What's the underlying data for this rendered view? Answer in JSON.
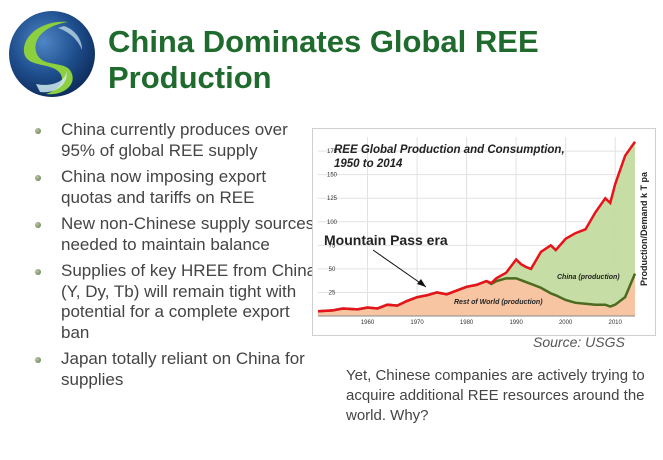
{
  "title": "China Dominates Global REE Production",
  "bullets": [
    "China currently produces over 95% of global REE supply",
    "China now imposing export quotas and tariffs on REE",
    "New non-Chinese supply sources needed to maintain balance",
    "Supplies of key HREE from China (Y, Dy, Tb) will remain tight with potential for a complete export ban",
    "Japan totally reliant on China for supplies"
  ],
  "chart": {
    "title": "REE Global Production and Consumption, 1950 to 2014",
    "ylabel": "Production/Demand k T pa",
    "mountain_pass_label": "Mountain Pass era",
    "china_label": "China (production)",
    "row_label": "Rest of World (production)"
  },
  "source": "Source: USGS",
  "note": "Yet, Chinese companies are actively trying to acquire additional REE resources around the world. Why?",
  "colors": {
    "title": "#1f6b2d",
    "total_line": "#e8121b",
    "row_line": "#4c6b1f",
    "china_fill": "#c3dba0",
    "row_fill": "#f8c5a3"
  },
  "chart_data": {
    "type": "area",
    "title": "REE Global Production and Consumption, 1950 to 2014",
    "xlabel": "",
    "ylabel": "Production/Demand k T pa",
    "xlim": [
      1950,
      2014
    ],
    "ylim": [
      0,
      190
    ],
    "xticks": [
      1960,
      1970,
      1980,
      1990,
      2000,
      2010
    ],
    "yticks": [
      25,
      50,
      75,
      100,
      125,
      150,
      175
    ],
    "grid": true,
    "series": [
      {
        "name": "",
        "x": [
          1950,
          1953,
          1955,
          1958,
          1960,
          1962,
          1964,
          1966,
          1968,
          1970,
          1972,
          1974,
          1976,
          1978,
          1980,
          1982,
          1984,
          1985,
          1986,
          1988,
          1990,
          1991,
          1992,
          1993,
          1995,
          1997,
          1998,
          2000,
          2002,
          2004,
          2006,
          2008,
          2009,
          2010,
          2012,
          2014
        ],
        "values": [
          5,
          6,
          8,
          7,
          9,
          8,
          12,
          11,
          16,
          20,
          22,
          25,
          23,
          27,
          31,
          33,
          37,
          35,
          40,
          46,
          60,
          55,
          52,
          50,
          68,
          75,
          70,
          82,
          88,
          92,
          110,
          125,
          120,
          140,
          170,
          185
        ]
      },
      {
        "name": "China (production)",
        "x": [
          1950,
          1980,
          1985,
          1988,
          1990,
          1992,
          1995,
          2000,
          2005,
          2010,
          2014
        ],
        "values": [
          0,
          0,
          1,
          5,
          14,
          12,
          18,
          72,
          100,
          130,
          180
        ]
      },
      {
        "name": "Rest of World (production)",
        "x": [
          1950,
          1953,
          1955,
          1958,
          1960,
          1962,
          1964,
          1966,
          1968,
          1970,
          1972,
          1974,
          1976,
          1978,
          1980,
          1982,
          1984,
          1985,
          1986,
          1988,
          1990,
          1991,
          1992,
          1993,
          1995,
          1997,
          1998,
          2000,
          2002,
          2004,
          2006,
          2008,
          2009,
          2010,
          2012,
          2014
        ],
        "values": [
          5,
          6,
          8,
          7,
          9,
          8,
          12,
          11,
          16,
          20,
          22,
          25,
          23,
          27,
          31,
          33,
          37,
          34,
          37,
          40,
          40,
          38,
          36,
          34,
          30,
          24,
          22,
          17,
          14,
          13,
          12,
          12,
          10,
          12,
          20,
          45
        ]
      }
    ]
  }
}
